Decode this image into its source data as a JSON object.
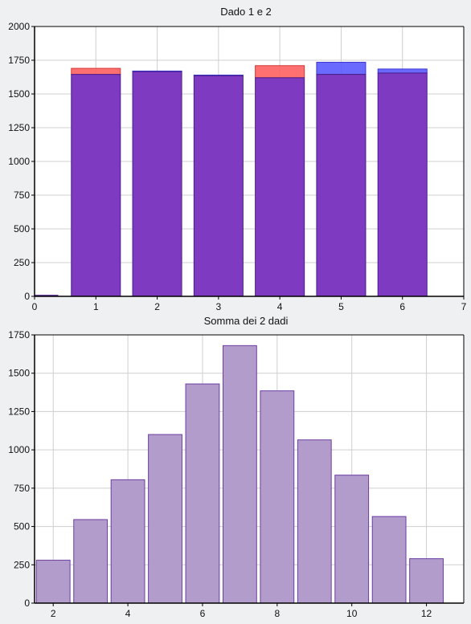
{
  "chart_data": [
    {
      "type": "bar",
      "title": "Dado 1 e 2",
      "xlabel": "",
      "ylabel": "",
      "xlim": [
        0,
        7
      ],
      "ylim": [
        0,
        2000
      ],
      "xticks": [
        0,
        1,
        2,
        3,
        4,
        5,
        6,
        7
      ],
      "yticks": [
        0,
        250,
        500,
        750,
        1000,
        1250,
        1500,
        1750,
        2000
      ],
      "grid": true,
      "overlay": true,
      "categories": [
        1,
        2,
        3,
        4,
        5,
        6
      ],
      "series": [
        {
          "values": [
            1690,
            1665,
            1635,
            1710,
            1645,
            1655
          ],
          "color": "#ff6060"
        },
        {
          "values": [
            1645,
            1670,
            1640,
            1620,
            1735,
            1685
          ],
          "color": "#5a5aff"
        }
      ],
      "overlap_color": "#7e3ac0"
    },
    {
      "type": "bar",
      "title": "Somma dei 2 dadi",
      "xlabel": "",
      "ylabel": "",
      "xlim": [
        1.5,
        13
      ],
      "ylim": [
        0,
        1750
      ],
      "xticks": [
        2,
        4,
        6,
        8,
        10,
        12
      ],
      "yticks": [
        0,
        250,
        500,
        750,
        1000,
        1250,
        1500,
        1750
      ],
      "grid": true,
      "categories": [
        2,
        3,
        4,
        5,
        6,
        7,
        8,
        9,
        10,
        11,
        12
      ],
      "values": [
        280,
        545,
        805,
        1100,
        1430,
        1680,
        1385,
        1065,
        835,
        565,
        290
      ],
      "color": "#b19ccc",
      "edge_color": "#6e3da0"
    }
  ]
}
